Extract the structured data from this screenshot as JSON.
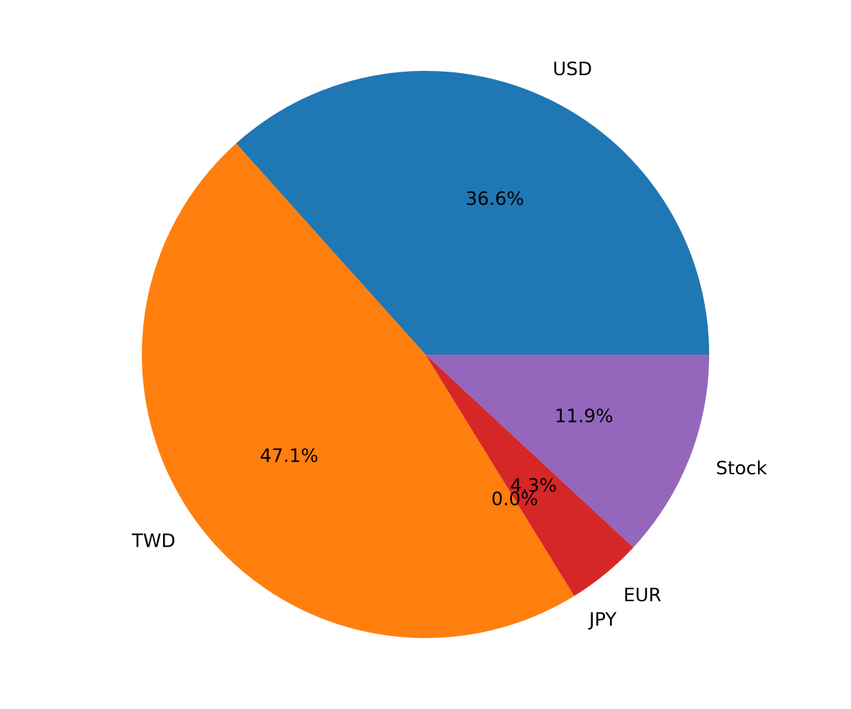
{
  "chart_data": {
    "type": "pie",
    "title": "",
    "start_angle_deg": 0,
    "direction": "counterclockwise",
    "slices": [
      {
        "label": "USD",
        "value": 36.6,
        "pct_label": "36.6%",
        "color": "#1f77b4"
      },
      {
        "label": "TWD",
        "value": 47.1,
        "pct_label": "47.1%",
        "color": "#ff7f0e"
      },
      {
        "label": "JPY",
        "value": 0.0,
        "pct_label": "0.0%",
        "color": "#2ca02c"
      },
      {
        "label": "EUR",
        "value": 4.3,
        "pct_label": "4.3%",
        "color": "#d62728"
      },
      {
        "label": "Stock",
        "value": 11.9,
        "pct_label": "11.9%",
        "color": "#9467bd"
      }
    ]
  }
}
